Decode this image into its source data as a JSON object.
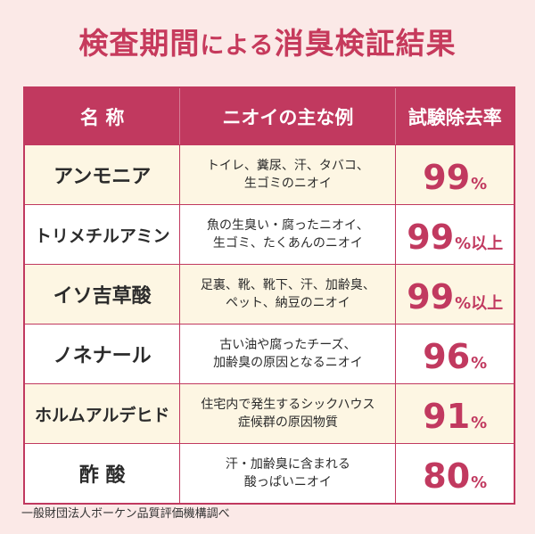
{
  "title": {
    "part1": "検査期間",
    "part2": "による",
    "part3": "消臭検証結果"
  },
  "table": {
    "headers": [
      "名 称",
      "ニオイの主な例",
      "試験除去率"
    ],
    "rows": [
      {
        "name": "アンモニア",
        "example_line1": "トイレ、糞尿、汗、タバコ、",
        "example_line2": "生ゴミのニオイ",
        "rate": "99",
        "suffix": "%"
      },
      {
        "name": "トリメチルアミン",
        "example_line1": "魚の生臭い・腐ったニオイ、",
        "example_line2": "生ゴミ、たくあんのニオイ",
        "rate": "99",
        "suffix": "%以上"
      },
      {
        "name": "イソ吉草酸",
        "example_line1": "足裏、靴、靴下、汗、加齢臭、",
        "example_line2": "ペット、納豆のニオイ",
        "rate": "99",
        "suffix": "%以上"
      },
      {
        "name": "ノネナール",
        "example_line1": "古い油や腐ったチーズ、",
        "example_line2": "加齢臭の原因となるニオイ",
        "rate": "96",
        "suffix": "%"
      },
      {
        "name": "ホルムアルデヒド",
        "example_line1": "住宅内で発生するシックハウス",
        "example_line2": "症候群の原因物質",
        "rate": "91",
        "suffix": "%"
      },
      {
        "name": "酢 酸",
        "example_line1": "汗・加齢臭に含まれる",
        "example_line2": "酸っぱいニオイ",
        "rate": "80",
        "suffix": "%"
      }
    ]
  },
  "footer": "一般財団法人ボーケン品質評価機構調べ"
}
